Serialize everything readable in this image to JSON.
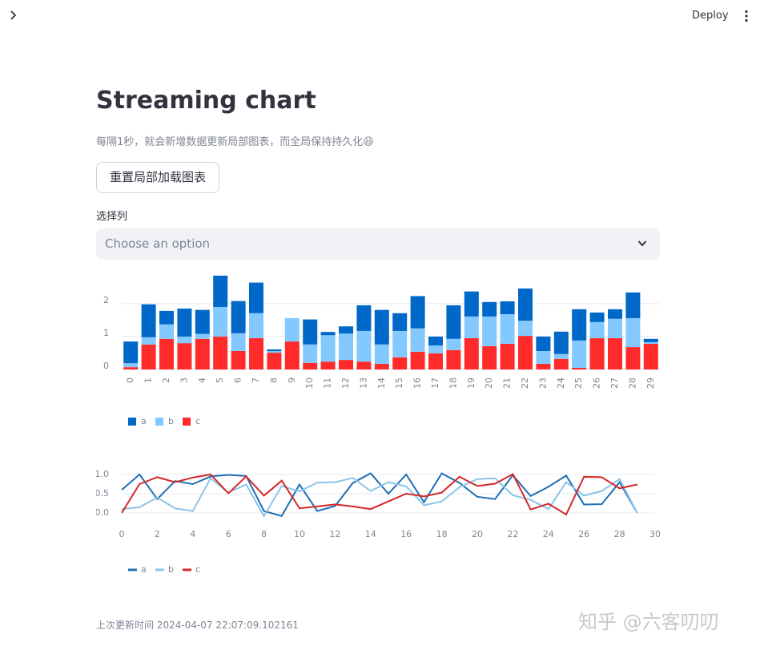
{
  "header": {
    "deploy": "Deploy"
  },
  "title": "Streaming chart",
  "caption": "每隔1秒，就会新增数据更新局部图表，而全局保持持久化😆",
  "button": "重置局部加载图表",
  "select": {
    "label": "选择列",
    "placeholder": "Choose an option"
  },
  "footer": "上次更新时间 2024-04-07 22:07:09.102161",
  "watermark": "知乎 @六客叨叨",
  "chart_data": [
    {
      "type": "bar",
      "stacked": true,
      "grid": true,
      "legend": "bottom-left",
      "categories": [
        "0",
        "1",
        "2",
        "3",
        "4",
        "5",
        "6",
        "7",
        "8",
        "9",
        "10",
        "11",
        "12",
        "13",
        "14",
        "15",
        "16",
        "17",
        "18",
        "19",
        "20",
        "21",
        "22",
        "23",
        "24",
        "25",
        "26",
        "27",
        "28",
        "29"
      ],
      "ylim": [
        0,
        2.8
      ],
      "yticks": [
        0,
        1,
        2
      ],
      "series": [
        {
          "name": "c",
          "color": "#ff2b2b",
          "values": [
            0.07,
            0.76,
            0.93,
            0.8,
            0.93,
            1.0,
            0.56,
            0.95,
            0.51,
            0.85,
            0.2,
            0.24,
            0.29,
            0.24,
            0.17,
            0.37,
            0.54,
            0.49,
            0.59,
            0.95,
            0.71,
            0.78,
            1.02,
            0.17,
            0.32,
            0.05,
            0.95,
            0.95,
            0.68,
            0.78
          ]
        },
        {
          "name": "b",
          "color": "#83c9ff",
          "values": [
            0.12,
            0.22,
            0.44,
            0.2,
            0.15,
            0.9,
            0.54,
            0.76,
            0.05,
            0.71,
            0.56,
            0.8,
            0.8,
            0.93,
            0.59,
            0.8,
            0.71,
            0.24,
            0.34,
            0.66,
            0.9,
            0.9,
            0.46,
            0.39,
            0.15,
            0.83,
            0.49,
            0.59,
            0.88,
            0.05
          ]
        },
        {
          "name": "a",
          "color": "#0068c9",
          "values": [
            0.66,
            1.0,
            0.41,
            0.85,
            0.73,
            0.95,
            0.98,
            0.93,
            0.05,
            0.0,
            0.76,
            0.1,
            0.22,
            0.78,
            1.05,
            0.54,
            0.98,
            0.27,
            1.02,
            0.76,
            0.44,
            0.39,
            0.98,
            0.44,
            0.68,
            0.95,
            0.29,
            0.29,
            0.78,
            0.1
          ]
        }
      ]
    },
    {
      "type": "line",
      "grid": true,
      "legend": "bottom-left",
      "x": [
        0,
        1,
        2,
        3,
        4,
        5,
        6,
        7,
        8,
        9,
        10,
        11,
        12,
        13,
        14,
        15,
        16,
        17,
        18,
        19,
        20,
        21,
        22,
        23,
        24,
        25,
        26,
        27,
        28,
        29
      ],
      "xlim": [
        0,
        30
      ],
      "xticks": [
        0,
        2,
        4,
        6,
        8,
        10,
        12,
        14,
        16,
        18,
        20,
        22,
        24,
        26,
        28,
        30
      ],
      "ylim": [
        -0.1,
        1.05
      ],
      "yticks": [
        {
          "value": 0,
          "label": "0.0"
        },
        {
          "value": 0.5,
          "label": "0.5"
        },
        {
          "value": 1,
          "label": "1.0"
        }
      ],
      "series": [
        {
          "name": "a",
          "color": "#1f6fb4",
          "values": [
            0.6,
            1.0,
            0.36,
            0.83,
            0.75,
            0.95,
            0.99,
            0.96,
            0.05,
            -0.08,
            0.74,
            0.05,
            0.18,
            0.78,
            1.03,
            0.5,
            1.0,
            0.28,
            1.03,
            0.78,
            0.42,
            0.36,
            0.98,
            0.44,
            0.68,
            0.97,
            0.22,
            0.23,
            0.8,
            0.0
          ]
        },
        {
          "name": "b",
          "color": "#8cc4ea",
          "values": [
            0.1,
            0.15,
            0.4,
            0.12,
            0.05,
            0.9,
            0.53,
            0.74,
            -0.08,
            0.7,
            0.56,
            0.79,
            0.8,
            0.91,
            0.57,
            0.8,
            0.69,
            0.2,
            0.3,
            0.67,
            0.88,
            0.9,
            0.46,
            0.34,
            0.1,
            0.8,
            0.45,
            0.57,
            0.88,
            0.0
          ]
        },
        {
          "name": "c",
          "color": "#d62728",
          "values": [
            0.0,
            0.75,
            0.93,
            0.8,
            0.92,
            1.0,
            0.51,
            0.95,
            0.45,
            0.84,
            0.12,
            0.17,
            0.22,
            0.17,
            0.1,
            0.3,
            0.5,
            0.43,
            0.53,
            0.94,
            0.7,
            0.76,
            1.01,
            0.09,
            0.24,
            -0.04,
            0.94,
            0.93,
            0.64,
            0.74
          ]
        }
      ]
    }
  ]
}
